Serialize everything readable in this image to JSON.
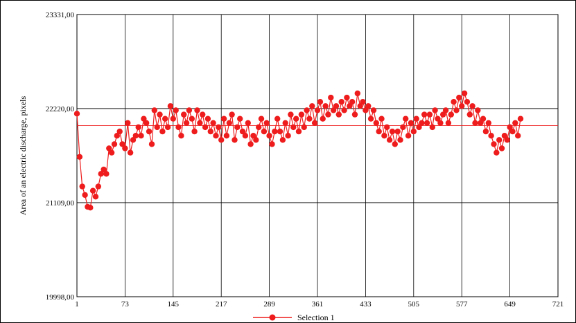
{
  "chart_data": {
    "type": "line",
    "title": "",
    "xlabel": "",
    "ylabel": "Area of an electric discharge, pixels",
    "xlim": [
      1,
      721
    ],
    "ylim": [
      19998,
      23331
    ],
    "x_ticks": [
      1,
      73,
      145,
      217,
      289,
      361,
      433,
      505,
      577,
      649,
      721
    ],
    "x_tick_labels": [
      "1",
      "73",
      "145",
      "217",
      "289",
      "361",
      "433",
      "505",
      "577",
      "649",
      "721"
    ],
    "y_ticks": [
      19998,
      21109,
      22220,
      23331
    ],
    "y_tick_labels": [
      "19998,00",
      "21109,00",
      "22220,00",
      "23331,00"
    ],
    "grid": true,
    "legend_position": "bottom-center",
    "reference_line": {
      "y": 22020
    },
    "series": [
      {
        "name": "Selection 1",
        "color": "#ee1c1c",
        "x_start": 1,
        "x_step": 4,
        "values": [
          22160,
          21650,
          21300,
          21200,
          21060,
          21050,
          21250,
          21180,
          21300,
          21450,
          21500,
          21450,
          21750,
          21700,
          21800,
          21900,
          21950,
          21800,
          21750,
          22050,
          21700,
          21850,
          21900,
          22000,
          21900,
          22100,
          22050,
          21950,
          21800,
          22200,
          22000,
          22150,
          21950,
          22100,
          22000,
          22250,
          22100,
          22200,
          22000,
          21900,
          22150,
          22050,
          22200,
          22100,
          21950,
          22200,
          22050,
          22150,
          22000,
          22100,
          21950,
          22050,
          21900,
          22000,
          21850,
          22100,
          21900,
          22050,
          22150,
          21850,
          22000,
          22100,
          21950,
          21900,
          22050,
          21800,
          21900,
          21850,
          22000,
          22100,
          21950,
          22050,
          21900,
          21800,
          21950,
          22100,
          21950,
          21850,
          22050,
          21900,
          22150,
          22000,
          22100,
          21950,
          22150,
          22000,
          22200,
          22100,
          22250,
          22050,
          22200,
          22300,
          22100,
          22250,
          22150,
          22350,
          22200,
          22250,
          22150,
          22300,
          22200,
          22350,
          22250,
          22300,
          22150,
          22400,
          22250,
          22300,
          22200,
          22250,
          22100,
          22200,
          22050,
          21950,
          22100,
          21900,
          22000,
          21850,
          21950,
          21800,
          21950,
          21850,
          22000,
          22100,
          21900,
          22050,
          21950,
          22100,
          22000,
          22050,
          22150,
          22050,
          22150,
          22000,
          22200,
          22100,
          22050,
          22150,
          22200,
          22050,
          22150,
          22300,
          22200,
          22350,
          22250,
          22400,
          22300,
          22150,
          22250,
          22050,
          22200,
          22050,
          22100,
          21950,
          22050,
          21900,
          21800,
          21700,
          21850,
          21750,
          21900,
          21850,
          22000,
          21950,
          22050,
          21900,
          22100
        ]
      }
    ]
  }
}
